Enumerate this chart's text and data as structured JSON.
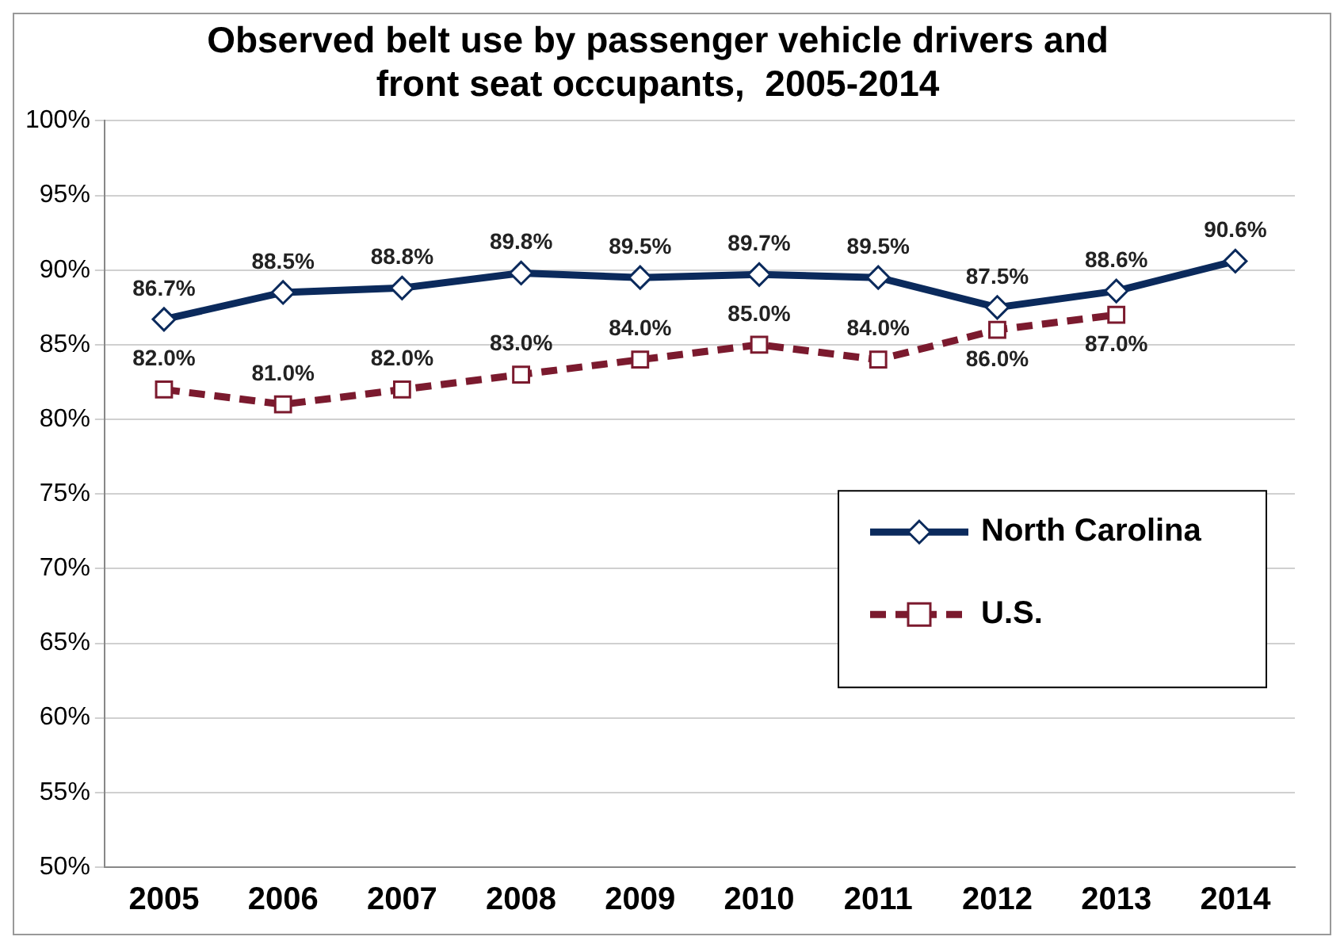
{
  "chart_data": {
    "type": "line",
    "title": "Observed belt use by passenger vehicle drivers and front seat occupants,  2005-2014",
    "categories": [
      "2005",
      "2006",
      "2007",
      "2008",
      "2009",
      "2010",
      "2011",
      "2012",
      "2013",
      "2014"
    ],
    "series": [
      {
        "name": "North Carolina",
        "color": "#0b2a5c",
        "marker": "diamond",
        "line_style": "solid",
        "values": [
          86.7,
          88.5,
          88.8,
          89.8,
          89.5,
          89.7,
          89.5,
          87.5,
          88.6,
          90.6
        ],
        "value_labels": [
          "86.7%",
          "88.5%",
          "88.8%",
          "89.8%",
          "89.5%",
          "89.7%",
          "89.5%",
          "87.5%",
          "88.6%",
          "90.6%"
        ]
      },
      {
        "name": "U.S.",
        "color": "#7b1a2e",
        "marker": "square",
        "line_style": "dashed",
        "values": [
          82,
          81,
          82,
          83,
          84,
          85,
          84,
          86,
          87,
          null
        ],
        "value_labels": [
          "82.0%",
          "81.0%",
          "82.0%",
          "83.0%",
          "84.0%",
          "85.0%",
          "84.0%",
          "86.0%",
          "87.0%",
          null
        ]
      }
    ],
    "ylim": [
      50,
      100
    ],
    "yticks": [
      {
        "value": 50,
        "label": "50%"
      },
      {
        "value": 55,
        "label": "55%"
      },
      {
        "value": 60,
        "label": "60%"
      },
      {
        "value": 65,
        "label": "65%"
      },
      {
        "value": 70,
        "label": "70%"
      },
      {
        "value": 75,
        "label": "75%"
      },
      {
        "value": 80,
        "label": "80%"
      },
      {
        "value": 85,
        "label": "85%"
      },
      {
        "value": 90,
        "label": "90%"
      },
      {
        "value": 95,
        "label": "95%"
      },
      {
        "value": 100,
        "label": "100%"
      }
    ],
    "grid": "y",
    "legend": "right"
  }
}
